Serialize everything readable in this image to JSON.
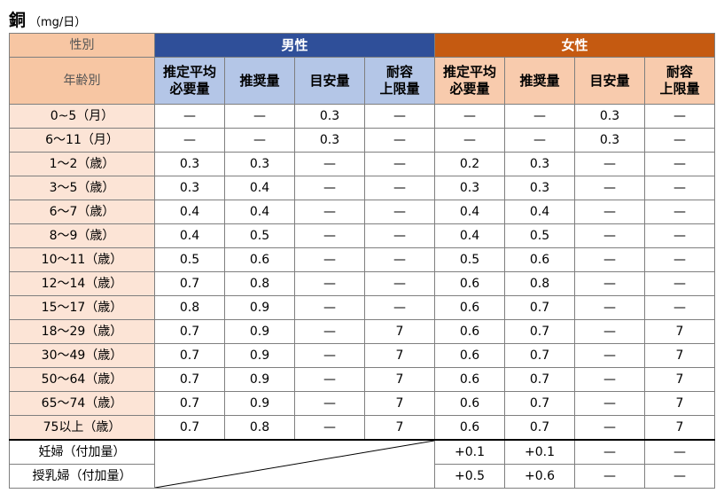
{
  "title": {
    "main": "銅",
    "unit": "（mg/日）"
  },
  "header": {
    "sex_label": "性別",
    "age_label": "年齢別",
    "male": "男性",
    "female": "女性",
    "cols": [
      [
        "推定平均",
        "必要量"
      ],
      [
        "推奨量"
      ],
      [
        "目安量"
      ],
      [
        "耐容",
        "上限量"
      ]
    ]
  },
  "rows": [
    {
      "age": "0~5（月）",
      "m": [
        "—",
        "—",
        "0.3",
        "—"
      ],
      "f": [
        "—",
        "—",
        "0.3",
        "—"
      ]
    },
    {
      "age": "6～11（月）",
      "m": [
        "—",
        "—",
        "0.3",
        "—"
      ],
      "f": [
        "—",
        "—",
        "0.3",
        "—"
      ]
    },
    {
      "age": "1～2（歳）",
      "m": [
        "0.3",
        "0.3",
        "—",
        "—"
      ],
      "f": [
        "0.2",
        "0.3",
        "—",
        "—"
      ]
    },
    {
      "age": "3～5（歳）",
      "m": [
        "0.3",
        "0.4",
        "—",
        "—"
      ],
      "f": [
        "0.3",
        "0.3",
        "—",
        "—"
      ]
    },
    {
      "age": "6～7（歳）",
      "m": [
        "0.4",
        "0.4",
        "—",
        "—"
      ],
      "f": [
        "0.4",
        "0.4",
        "—",
        "—"
      ]
    },
    {
      "age": "8～9（歳）",
      "m": [
        "0.4",
        "0.5",
        "—",
        "—"
      ],
      "f": [
        "0.4",
        "0.5",
        "—",
        "—"
      ]
    },
    {
      "age": "10～11（歳）",
      "m": [
        "0.5",
        "0.6",
        "—",
        "—"
      ],
      "f": [
        "0.5",
        "0.6",
        "—",
        "—"
      ]
    },
    {
      "age": "12～14（歳）",
      "m": [
        "0.7",
        "0.8",
        "—",
        "—"
      ],
      "f": [
        "0.6",
        "0.8",
        "—",
        "—"
      ]
    },
    {
      "age": "15～17（歳）",
      "m": [
        "0.8",
        "0.9",
        "—",
        "—"
      ],
      "f": [
        "0.6",
        "0.7",
        "—",
        "—"
      ]
    },
    {
      "age": "18～29（歳）",
      "m": [
        "0.7",
        "0.9",
        "—",
        "7"
      ],
      "f": [
        "0.6",
        "0.7",
        "—",
        "7"
      ]
    },
    {
      "age": "30～49（歳）",
      "m": [
        "0.7",
        "0.9",
        "—",
        "7"
      ],
      "f": [
        "0.6",
        "0.7",
        "—",
        "7"
      ]
    },
    {
      "age": "50～64（歳）",
      "m": [
        "0.7",
        "0.9",
        "—",
        "7"
      ],
      "f": [
        "0.6",
        "0.7",
        "—",
        "7"
      ]
    },
    {
      "age": "65～74（歳）",
      "m": [
        "0.7",
        "0.9",
        "—",
        "7"
      ],
      "f": [
        "0.6",
        "0.7",
        "—",
        "7"
      ]
    },
    {
      "age": "75以上（歳）",
      "m": [
        "0.7",
        "0.8",
        "—",
        "7"
      ],
      "f": [
        "0.6",
        "0.7",
        "—",
        "7"
      ]
    }
  ],
  "extra_rows": [
    {
      "age": "妊婦（付加量）",
      "f": [
        "+0.1",
        "+0.1",
        "—",
        "—"
      ]
    },
    {
      "age": "授乳婦（付加量）",
      "f": [
        "+0.5",
        "+0.6",
        "—",
        "—"
      ]
    }
  ]
}
